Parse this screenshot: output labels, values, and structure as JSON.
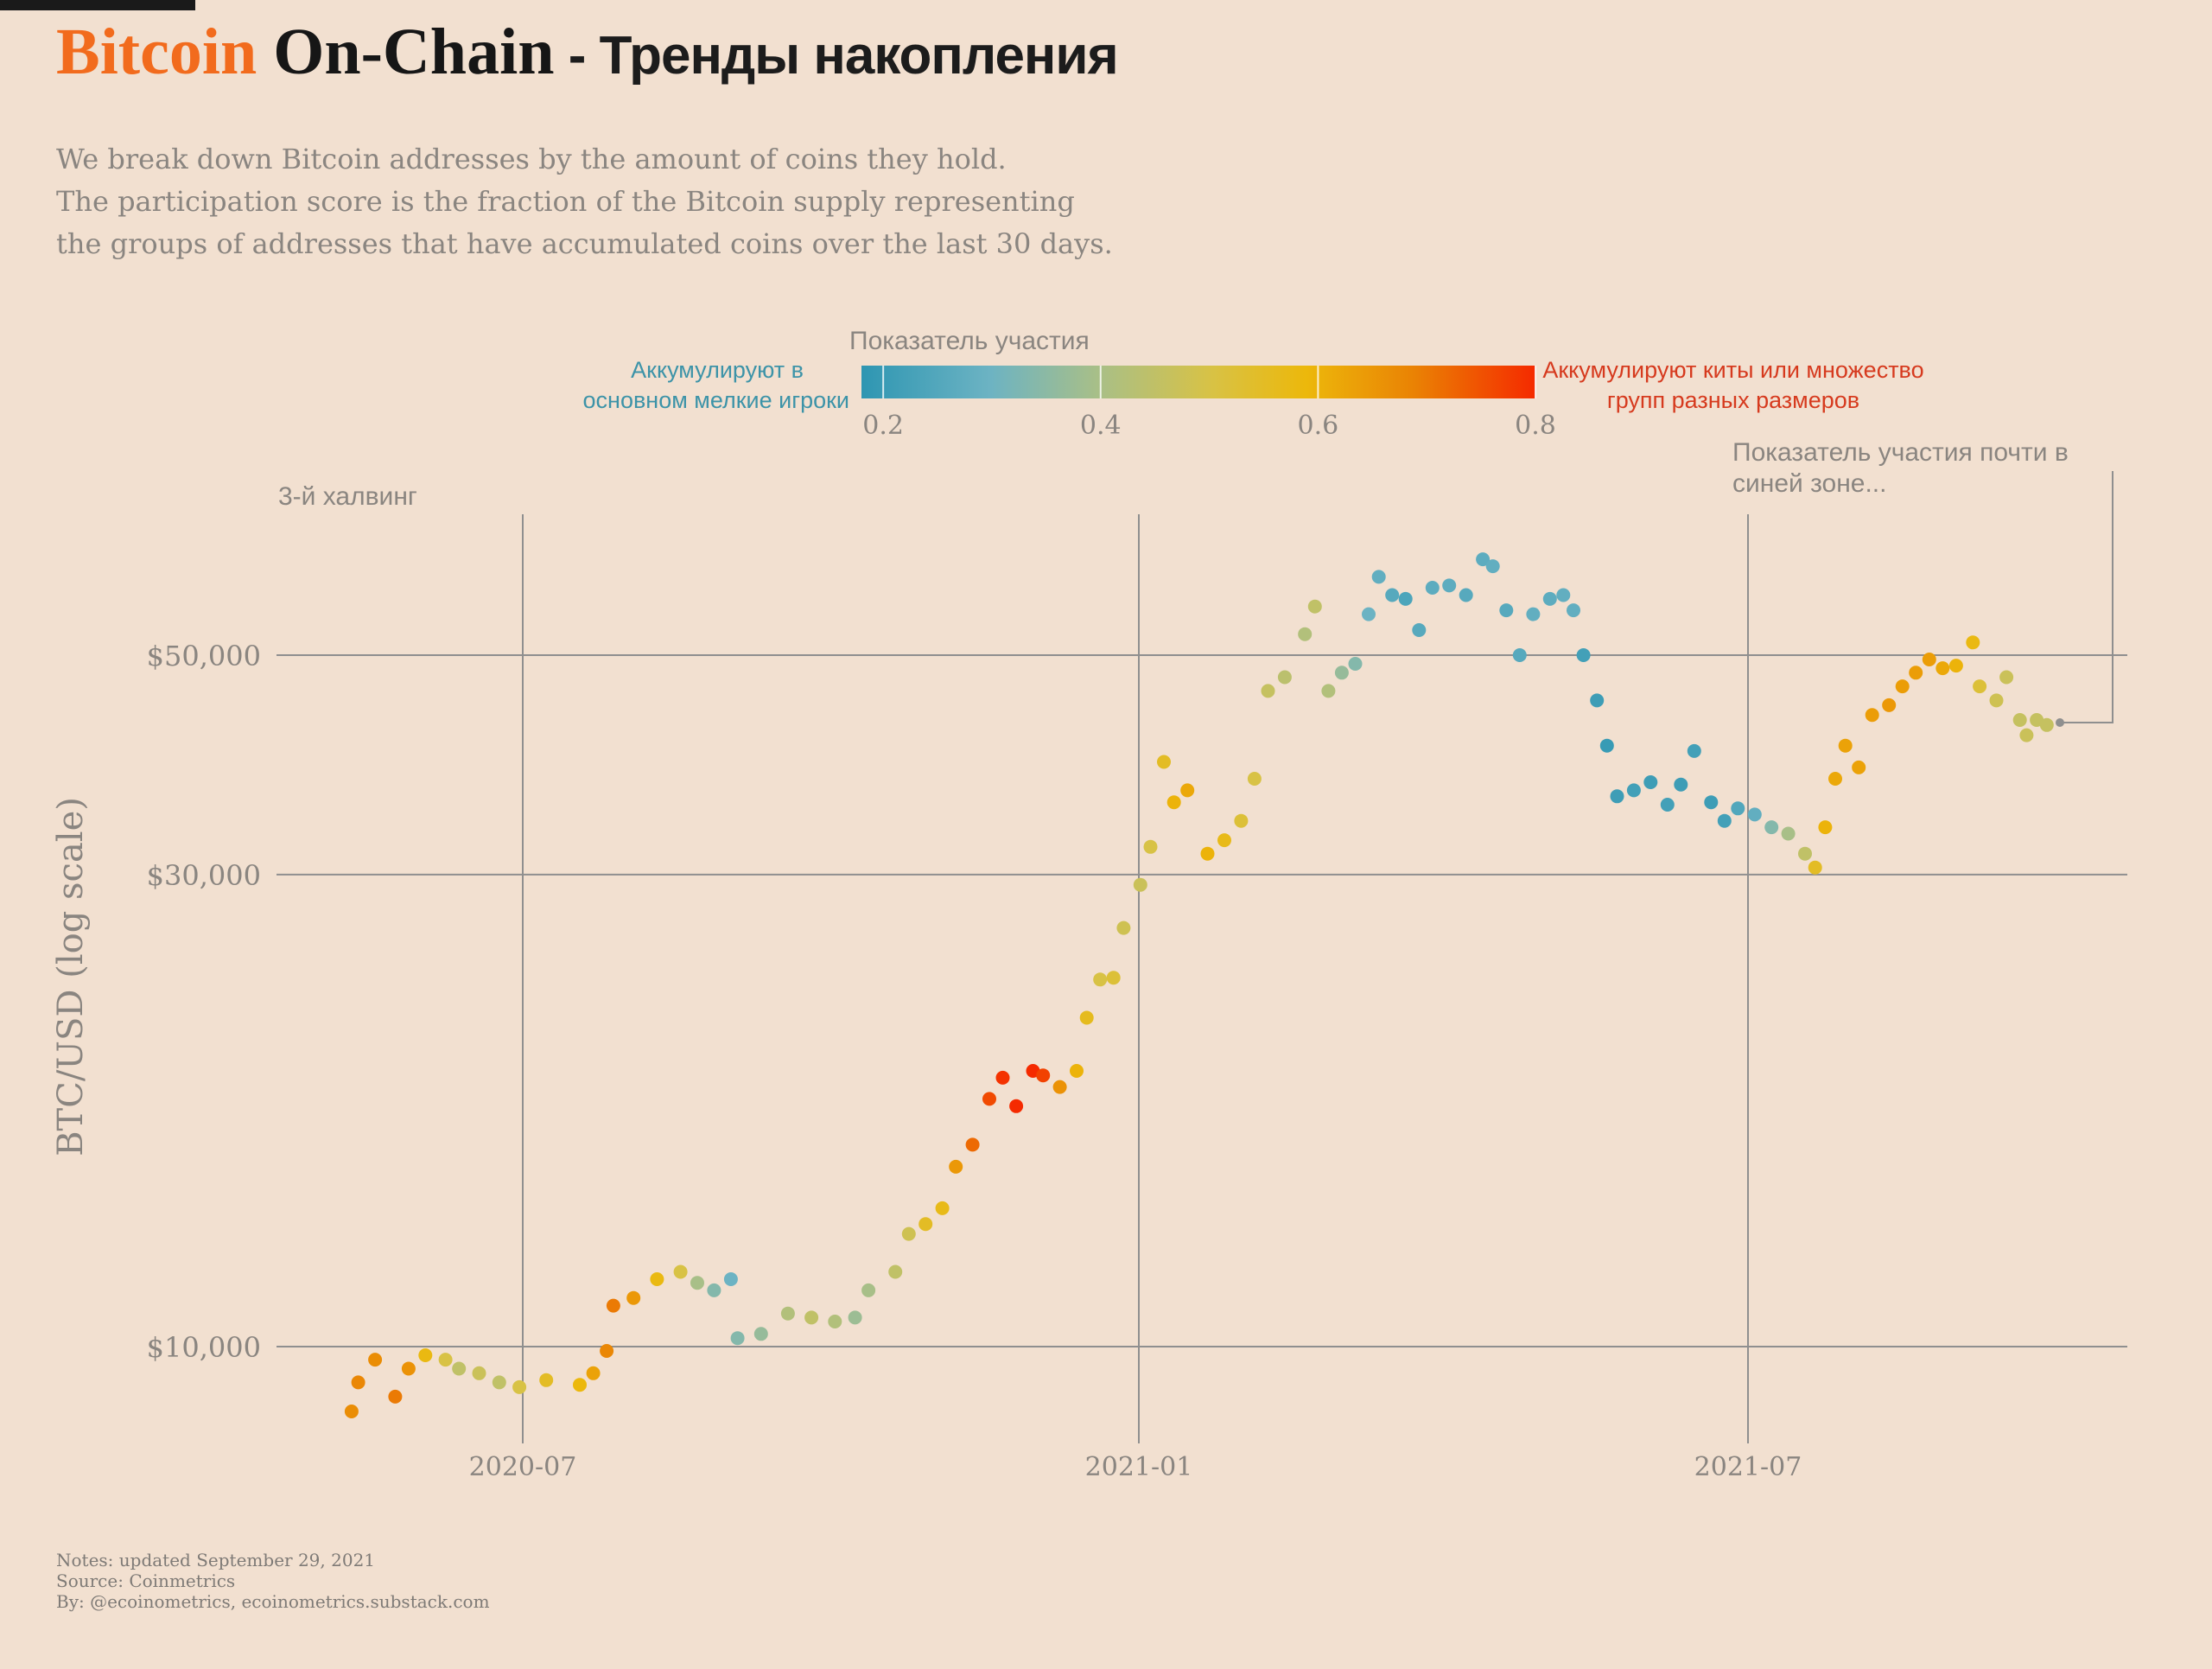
{
  "header": {
    "title_word1": "Bitcoin",
    "title_word2": "On-Chain",
    "title_rest": "- Тренды накопления",
    "description": [
      "We break down Bitcoin addresses by the amount of coins they hold.",
      "The participation score is the fraction of the Bitcoin supply representing",
      "the groups of addresses that have accumulated coins over the last 30 days."
    ]
  },
  "legend": {
    "title": "Показатель участия",
    "left_label": [
      "Аккумулируют в",
      "основном мелкие игроки"
    ],
    "right_label": [
      "Аккумулируют киты или множество",
      "групп разных размеров"
    ],
    "ticks": [
      "0.2",
      "0.4",
      "0.6",
      "0.8"
    ],
    "range": [
      0.18,
      0.8
    ]
  },
  "annotations": {
    "halving": "3-й халвинг",
    "latest": [
      "Показатель участия почти в",
      "синей зоне..."
    ]
  },
  "footer": {
    "notes": "Notes: updated September 29, 2021",
    "source": "Source: Coinmetrics",
    "by": "By: @ecoinometrics, ecoinometrics.substack.com"
  },
  "colors": {
    "background": "#f2e0d0",
    "title_orange": "#f26b1d",
    "title_black": "#161616",
    "blue": "#2e96b2",
    "red": "#f52a00",
    "left_label": "#3c93a8",
    "right_label": "#d63a1e",
    "grid": "#8f8f8f",
    "axis_text": "#8a8580"
  },
  "chart_data": {
    "type": "scatter",
    "title": "Bitcoin On-Chain - Тренды накопления",
    "xlabel": "",
    "ylabel": "BTC/USD (log scale)",
    "y_scale": "log",
    "x_range": [
      "2020-05-11",
      "2021-09-29"
    ],
    "y_range": [
      8000,
      70000
    ],
    "x_ticks": [
      "2020-07",
      "2021-01",
      "2021-07"
    ],
    "y_ticks": [
      {
        "value": 10000,
        "label": "$10,000"
      },
      {
        "value": 30000,
        "label": "$30,000"
      },
      {
        "value": 50000,
        "label": "$50,000"
      }
    ],
    "grid": true,
    "color_encoding": "participation score",
    "anchor_points": [
      [
        "2020-05-11",
        8600,
        0.67
      ],
      [
        "2020-05-13",
        9200,
        0.68
      ],
      [
        "2020-05-18",
        9700,
        0.67
      ],
      [
        "2020-05-24",
        8900,
        0.7
      ],
      [
        "2020-05-28",
        9500,
        0.66
      ],
      [
        "2020-06-02",
        9800,
        0.58
      ],
      [
        "2020-06-08",
        9700,
        0.5
      ],
      [
        "2020-06-12",
        9500,
        0.45
      ],
      [
        "2020-06-18",
        9400,
        0.47
      ],
      [
        "2020-06-24",
        9200,
        0.45
      ],
      [
        "2020-06-30",
        9100,
        0.5
      ],
      [
        "2020-07-08",
        9250,
        0.55
      ],
      [
        "2020-07-18",
        9150,
        0.59
      ],
      [
        "2020-07-22",
        9400,
        0.63
      ],
      [
        "2020-07-26",
        9900,
        0.68
      ],
      [
        "2020-07-28",
        11000,
        0.7
      ],
      [
        "2020-08-03",
        11200,
        0.65
      ],
      [
        "2020-08-10",
        11700,
        0.58
      ],
      [
        "2020-08-17",
        11900,
        0.5
      ],
      [
        "2020-08-22",
        11600,
        0.4
      ],
      [
        "2020-08-27",
        11400,
        0.34
      ],
      [
        "2020-09-01",
        11700,
        0.3
      ],
      [
        "2020-09-03",
        10200,
        0.34
      ],
      [
        "2020-09-10",
        10300,
        0.37
      ],
      [
        "2020-09-18",
        10800,
        0.42
      ],
      [
        "2020-09-25",
        10700,
        0.45
      ],
      [
        "2020-10-02",
        10600,
        0.42
      ],
      [
        "2020-10-08",
        10700,
        0.38
      ],
      [
        "2020-10-12",
        11400,
        0.4
      ],
      [
        "2020-10-20",
        11900,
        0.45
      ],
      [
        "2020-10-24",
        13000,
        0.48
      ],
      [
        "2020-10-29",
        13300,
        0.55
      ],
      [
        "2020-11-03",
        13800,
        0.57
      ],
      [
        "2020-11-07",
        15200,
        0.65
      ],
      [
        "2020-11-12",
        16000,
        0.72
      ],
      [
        "2020-11-17",
        17800,
        0.76
      ],
      [
        "2020-11-21",
        18700,
        0.79
      ],
      [
        "2020-11-25",
        17500,
        0.8
      ],
      [
        "2020-11-30",
        19000,
        0.8
      ],
      [
        "2020-12-03",
        18800,
        0.77
      ],
      [
        "2020-12-08",
        18300,
        0.66
      ],
      [
        "2020-12-13",
        19000,
        0.6
      ],
      [
        "2020-12-16",
        21500,
        0.56
      ],
      [
        "2020-12-20",
        23500,
        0.5
      ],
      [
        "2020-12-24",
        23600,
        0.52
      ],
      [
        "2020-12-27",
        26500,
        0.48
      ],
      [
        "2021-01-01",
        29300,
        0.47
      ],
      [
        "2021-01-04",
        32000,
        0.5
      ],
      [
        "2021-01-08",
        39000,
        0.55
      ],
      [
        "2021-01-11",
        35500,
        0.6
      ],
      [
        "2021-01-15",
        36500,
        0.62
      ],
      [
        "2021-01-21",
        31500,
        0.6
      ],
      [
        "2021-01-26",
        32500,
        0.57
      ],
      [
        "2021-01-31",
        34000,
        0.52
      ],
      [
        "2021-02-04",
        37500,
        0.5
      ],
      [
        "2021-02-08",
        46000,
        0.46
      ],
      [
        "2021-02-13",
        47500,
        0.44
      ],
      [
        "2021-02-19",
        52500,
        0.42
      ],
      [
        "2021-02-22",
        56000,
        0.45
      ],
      [
        "2021-02-26",
        46000,
        0.42
      ],
      [
        "2021-03-02",
        48000,
        0.37
      ],
      [
        "2021-03-06",
        49000,
        0.34
      ],
      [
        "2021-03-10",
        55000,
        0.3
      ],
      [
        "2021-03-13",
        60000,
        0.28
      ],
      [
        "2021-03-17",
        57500,
        0.26
      ],
      [
        "2021-03-21",
        57000,
        0.24
      ],
      [
        "2021-03-25",
        53000,
        0.26
      ],
      [
        "2021-03-29",
        58500,
        0.27
      ],
      [
        "2021-04-03",
        58800,
        0.27
      ],
      [
        "2021-04-08",
        57500,
        0.26
      ],
      [
        "2021-04-13",
        62500,
        0.27
      ],
      [
        "2021-04-16",
        61500,
        0.28
      ],
      [
        "2021-04-20",
        55500,
        0.26
      ],
      [
        "2021-04-24",
        50000,
        0.26
      ],
      [
        "2021-04-28",
        55000,
        0.28
      ],
      [
        "2021-05-03",
        57000,
        0.27
      ],
      [
        "2021-05-07",
        57500,
        0.28
      ],
      [
        "2021-05-10",
        55500,
        0.28
      ],
      [
        "2021-05-13",
        50000,
        0.22
      ],
      [
        "2021-05-17",
        45000,
        0.21
      ],
      [
        "2021-05-20",
        40500,
        0.2
      ],
      [
        "2021-05-23",
        36000,
        0.21
      ],
      [
        "2021-05-28",
        36500,
        0.22
      ],
      [
        "2021-06-02",
        37200,
        0.21
      ],
      [
        "2021-06-07",
        35300,
        0.22
      ],
      [
        "2021-06-11",
        37000,
        0.21
      ],
      [
        "2021-06-15",
        40000,
        0.22
      ],
      [
        "2021-06-20",
        35500,
        0.21
      ],
      [
        "2021-06-24",
        34000,
        0.22
      ],
      [
        "2021-06-28",
        35000,
        0.25
      ],
      [
        "2021-07-03",
        34500,
        0.28
      ],
      [
        "2021-07-08",
        33500,
        0.34
      ],
      [
        "2021-07-13",
        33000,
        0.4
      ],
      [
        "2021-07-18",
        31500,
        0.45
      ],
      [
        "2021-07-21",
        30500,
        0.55
      ],
      [
        "2021-07-24",
        33500,
        0.6
      ],
      [
        "2021-07-27",
        37500,
        0.62
      ],
      [
        "2021-07-30",
        40500,
        0.63
      ],
      [
        "2021-08-03",
        38500,
        0.63
      ],
      [
        "2021-08-07",
        43500,
        0.64
      ],
      [
        "2021-08-12",
        44500,
        0.65
      ],
      [
        "2021-08-16",
        46500,
        0.64
      ],
      [
        "2021-08-20",
        48000,
        0.64
      ],
      [
        "2021-08-24",
        49500,
        0.64
      ],
      [
        "2021-08-28",
        48500,
        0.62
      ],
      [
        "2021-09-01",
        48800,
        0.6
      ],
      [
        "2021-09-06",
        51500,
        0.58
      ],
      [
        "2021-09-08",
        46500,
        0.52
      ],
      [
        "2021-09-13",
        45000,
        0.48
      ],
      [
        "2021-09-16",
        47500,
        0.47
      ],
      [
        "2021-09-20",
        43000,
        0.46
      ],
      [
        "2021-09-22",
        41500,
        0.47
      ],
      [
        "2021-09-25",
        43000,
        0.46
      ],
      [
        "2021-09-28",
        42500,
        0.46
      ]
    ]
  }
}
